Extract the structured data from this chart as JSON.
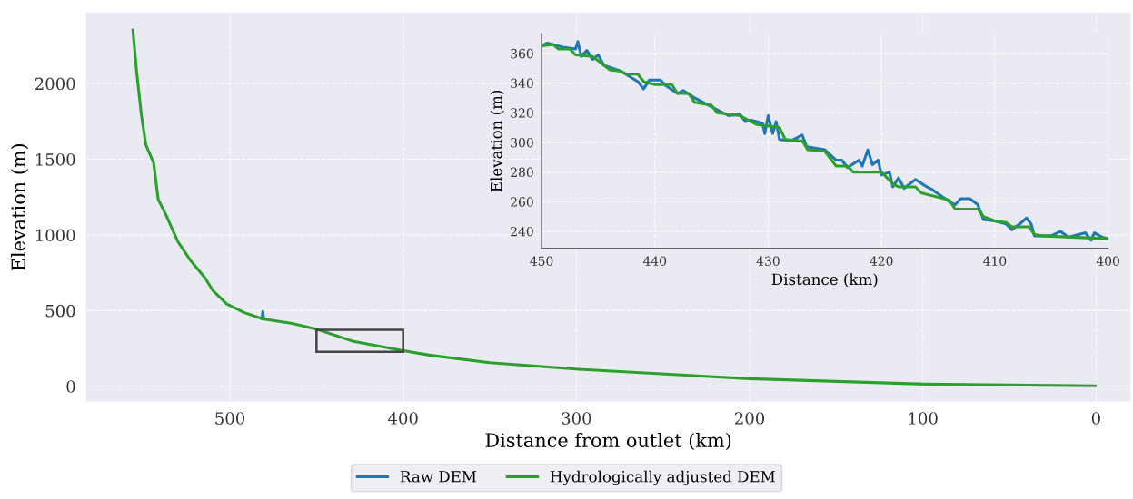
{
  "chart_data": [
    {
      "type": "line",
      "xlabel": "Distance from outlet (km)",
      "ylabel": "Elevation (m)",
      "xlim": [
        583,
        -20
      ],
      "ylim": [
        -102,
        2470
      ],
      "xticks": [
        500,
        400,
        300,
        200,
        100,
        0
      ],
      "yticks": [
        0,
        500,
        1000,
        1500,
        2000
      ],
      "grid": true,
      "legend": "bottom",
      "line_style": "solid",
      "series": [
        {
          "name": "Raw DEM",
          "color": "#1f77b4",
          "x": [
            481.5,
            481,
            480.5
          ],
          "values": [
            447,
            495,
            445
          ]
        },
        {
          "name": "Hydrologically adjusted DEM",
          "color": "#2ca02c",
          "x": [
            556,
            553.8,
            551.1,
            548.5,
            544,
            541.4,
            537,
            530,
            523,
            514.3,
            510,
            502,
            491.6,
            481,
            464,
            449.6,
            428.6,
            400.7,
            385,
            350,
            298.5,
            200,
            99,
            0.5
          ],
          "values": [
            2354,
            2074,
            1794,
            1595,
            1475,
            1235,
            1135,
            955,
            835,
            715,
            635,
            545,
            486,
            445,
            415,
            376,
            296,
            236,
            206,
            156,
            112,
            50,
            14,
            3
          ]
        }
      ]
    },
    {
      "type": "line",
      "xlabel": "Distance (km)",
      "ylabel": "Elevation (m)",
      "xlim": [
        450,
        400
      ],
      "ylim": [
        228.4,
        373.5
      ],
      "xticks": [
        450,
        440,
        430,
        420,
        410,
        400
      ],
      "yticks": [
        240,
        260,
        280,
        300,
        320,
        340,
        360
      ],
      "grid": true,
      "line_style": "solid",
      "series": [
        {
          "color": "#1f77b4",
          "x": [
            450,
            449.5,
            448,
            447,
            446.8,
            446.5,
            446,
            445.5,
            445,
            444.5,
            443,
            441.5,
            441,
            440.5,
            439.5,
            439,
            438,
            437.5,
            436.5,
            436,
            434.5,
            433.5,
            432.5,
            432,
            431.5,
            430.5,
            430.3,
            430,
            429.6,
            429.3,
            429,
            428,
            427,
            426.6,
            425,
            424,
            423.5,
            423,
            422,
            421.7,
            421.2,
            420.8,
            420.3,
            420,
            419.3,
            419,
            418.5,
            418,
            417,
            416,
            415.5,
            414,
            413.5,
            413,
            412.2,
            411.5,
            411,
            410,
            409,
            408.5,
            407.8,
            407.2,
            406.8,
            406.5,
            406,
            405,
            404.2,
            403.5,
            402,
            401.5,
            401.2,
            400.5,
            400
          ],
          "values": [
            365,
            367,
            364,
            363,
            368,
            358,
            362,
            356,
            359,
            352,
            348,
            341,
            336,
            342,
            342,
            338,
            333,
            335,
            330,
            328,
            322,
            318,
            319,
            314,
            315,
            313,
            306,
            318,
            306,
            314,
            302,
            301,
            305,
            297,
            295,
            288,
            288,
            283,
            288,
            284,
            295,
            285,
            288,
            278,
            280,
            270,
            276,
            269,
            275,
            270,
            268,
            260,
            258,
            262,
            262,
            258,
            248,
            247,
            245,
            241,
            245,
            249,
            245,
            237,
            237,
            237,
            240,
            236,
            239,
            234,
            239,
            236,
            235
          ]
        },
        {
          "color": "#2ca02c",
          "x": [
            450,
            449,
            448.5,
            447.5,
            447,
            445.5,
            445,
            444,
            443,
            442.5,
            441.5,
            441,
            440,
            438.5,
            438,
            437,
            436.5,
            435,
            434.5,
            432.5,
            431,
            429,
            428.5,
            427,
            426.5,
            425,
            424.5,
            424,
            423,
            422.5,
            420,
            419,
            418.5,
            417,
            416.5,
            415,
            414,
            413.5,
            411.5,
            411,
            410,
            409,
            408.5,
            407,
            406.5,
            406,
            400
          ],
          "values": [
            365,
            366,
            363,
            363,
            359,
            358,
            355,
            349,
            348,
            346,
            346,
            341,
            339,
            339,
            333,
            333,
            327,
            325,
            320,
            318,
            312,
            310,
            302,
            301,
            295,
            294,
            289,
            284,
            284,
            280,
            280,
            272,
            270,
            270,
            266,
            263,
            261,
            255,
            255,
            250,
            247,
            246,
            243,
            243,
            238,
            237,
            235
          ]
        }
      ]
    }
  ]
}
